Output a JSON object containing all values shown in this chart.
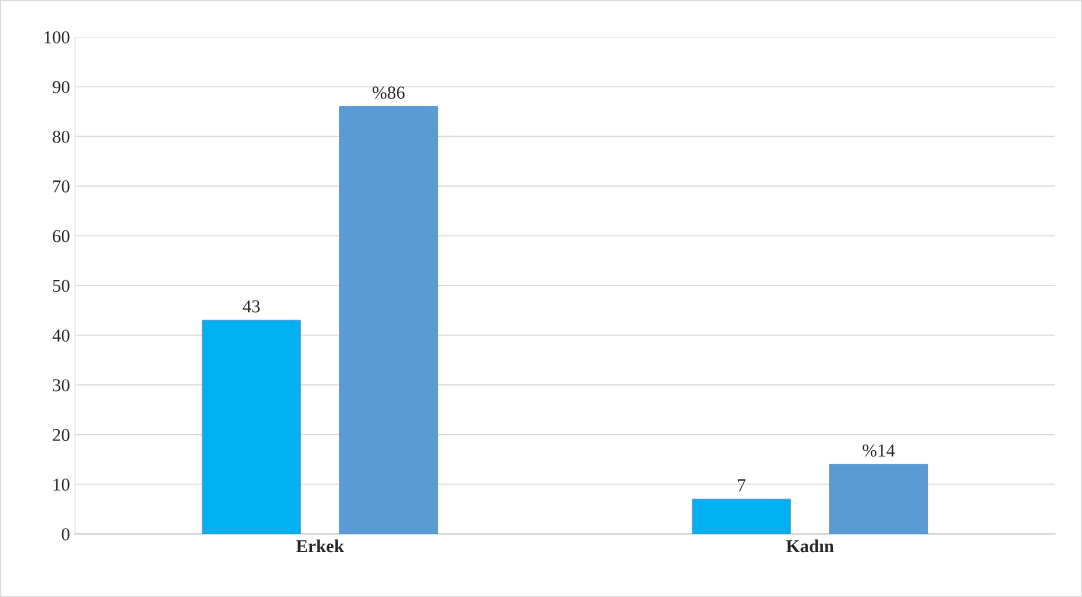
{
  "chart_data": {
    "type": "bar",
    "categories": [
      "Erkek",
      "Kadın"
    ],
    "series": [
      {
        "color": "#00b0f0",
        "values": [
          43,
          7
        ],
        "value_labels": [
          "43",
          "7"
        ]
      },
      {
        "color": "#5b9bd5",
        "values": [
          86,
          14
        ],
        "value_labels": [
          "%86",
          "%14"
        ]
      }
    ],
    "ylim": [
      0,
      100
    ],
    "yticks": [
      0,
      10,
      20,
      30,
      40,
      50,
      60,
      70,
      80,
      90,
      100
    ],
    "grid": "y",
    "legend": false
  }
}
